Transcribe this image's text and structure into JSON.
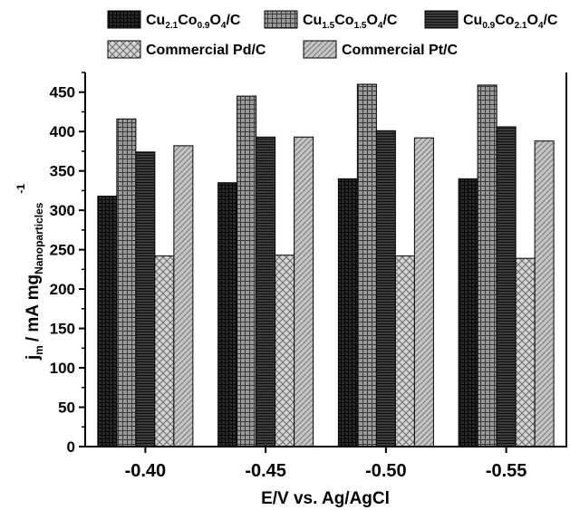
{
  "chart_data": {
    "type": "bar",
    "categories": [
      "-0.40",
      "-0.45",
      "-0.50",
      "-0.55"
    ],
    "xlabel": "E/V vs. Ag/AgCl",
    "ylabel": {
      "main": "j",
      "main_sub": "m",
      "unit": "/ mA mg",
      "unit_sub": "Nanoparticles",
      "unit_sup": "-1"
    },
    "ylim": [
      0,
      475
    ],
    "yticks": [
      0,
      50,
      100,
      150,
      200,
      250,
      300,
      350,
      400,
      450
    ],
    "legend_position": "top",
    "series": [
      {
        "name": "Cu2.1Co0.9O4/C",
        "legend_parts": [
          [
            "Cu",
            "b"
          ],
          [
            "2.1",
            "s"
          ],
          [
            "Co",
            "b"
          ],
          [
            "0.9",
            "s"
          ],
          [
            "O",
            "b"
          ],
          [
            "4",
            "s"
          ],
          [
            "/C",
            "b"
          ]
        ],
        "values": [
          318,
          335,
          340,
          340
        ],
        "pattern": "dense-grid",
        "color": "#2a2a2a"
      },
      {
        "name": "Cu1.5Co1.5O4/C",
        "legend_parts": [
          [
            "Cu",
            "b"
          ],
          [
            "1.5",
            "s"
          ],
          [
            "Co",
            "b"
          ],
          [
            "1.5",
            "s"
          ],
          [
            "O",
            "b"
          ],
          [
            "4",
            "s"
          ],
          [
            "/C",
            "b"
          ]
        ],
        "values": [
          416,
          445,
          460,
          459
        ],
        "pattern": "grid",
        "color": "#888888"
      },
      {
        "name": "Cu0.9Co2.1O4/C",
        "legend_parts": [
          [
            "Cu",
            "b"
          ],
          [
            "0.9",
            "s"
          ],
          [
            "Co",
            "b"
          ],
          [
            "2.1",
            "s"
          ],
          [
            "O",
            "b"
          ],
          [
            "4",
            "s"
          ],
          [
            "/C",
            "b"
          ]
        ],
        "values": [
          374,
          393,
          401,
          406
        ],
        "pattern": "horizontal-lines",
        "color": "#3a3a3a"
      },
      {
        "name": "Commercial Pd/C",
        "legend_parts": [
          [
            "Commercial Pd/C",
            "b"
          ]
        ],
        "values": [
          242,
          243,
          242,
          239
        ],
        "pattern": "crosshatch",
        "color": "#c8c8c8"
      },
      {
        "name": "Commercial Pt/C",
        "legend_parts": [
          [
            "Commercial Pt/C",
            "b"
          ]
        ],
        "values": [
          382,
          393,
          392,
          388
        ],
        "pattern": "diagonal",
        "color": "#b8b8b8"
      }
    ]
  }
}
